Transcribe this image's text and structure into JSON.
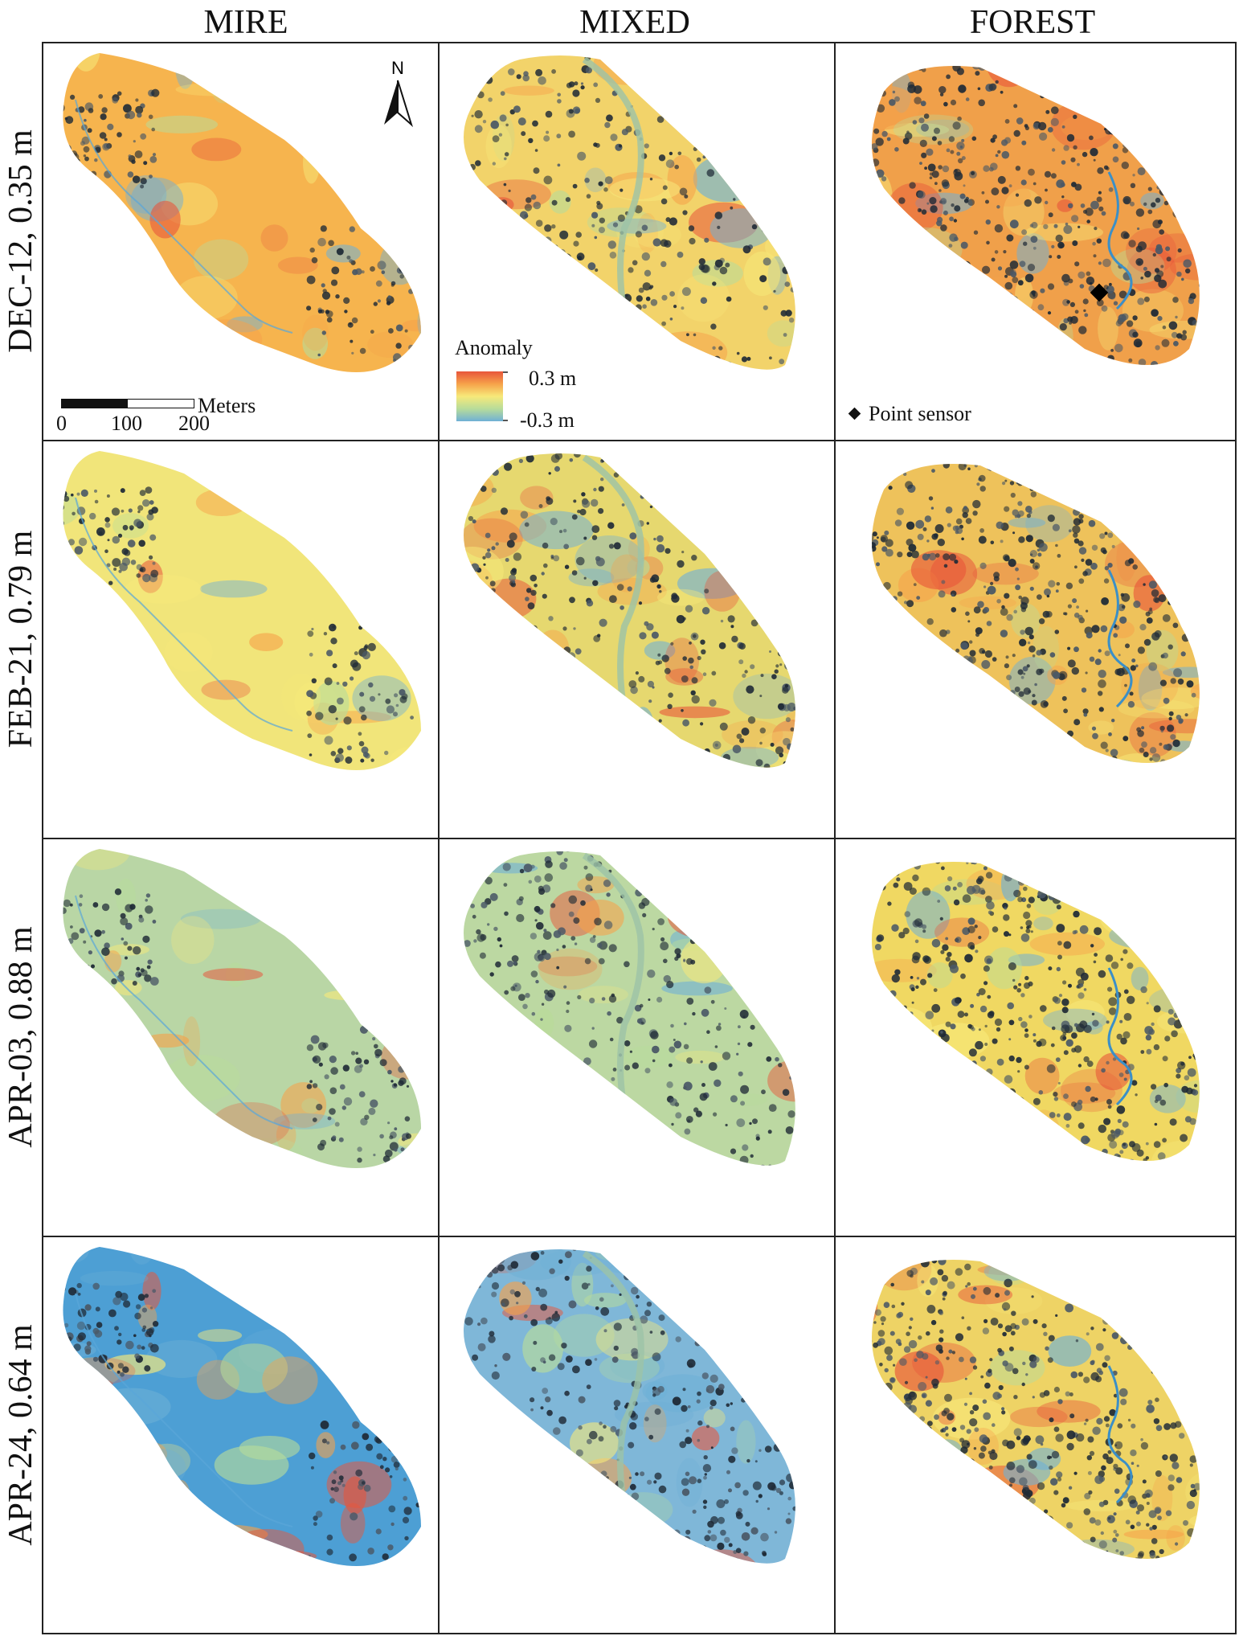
{
  "columns": [
    "MIRE",
    "MIXED",
    "FOREST"
  ],
  "rows": [
    "DEC-12, 0.35 m",
    "FEB-21, 0.79 m",
    "APR-03, 0.88 m",
    "APR-24, 0.64 m"
  ],
  "north_label": "N",
  "scale_bar": {
    "unit": "Meters",
    "ticks": [
      "0",
      "100",
      "200"
    ]
  },
  "legend": {
    "title": "Anomaly",
    "max_label": "0.3 m",
    "min_label": "-0.3 m",
    "colors": [
      "#e8553a",
      "#f6a24a",
      "#f7e97a",
      "#b8dc9a",
      "#6fb0d6"
    ]
  },
  "point_sensor_label": "Point sensor",
  "panel_palettes": [
    [
      "#f6b44e",
      "#74b3dd",
      "#c4dd91",
      "#f3c562"
    ],
    [
      "#f2d36a",
      "#e6d86f",
      "#bcd8a2",
      "#7fb7d8"
    ],
    [
      "#f0a04a",
      "#eec25b",
      "#f0d862",
      "#eed365"
    ]
  ],
  "mire_bases": [
    "#f6b44e",
    "#f1e57a",
    "#b9d6a5",
    "#4d9fd4"
  ]
}
